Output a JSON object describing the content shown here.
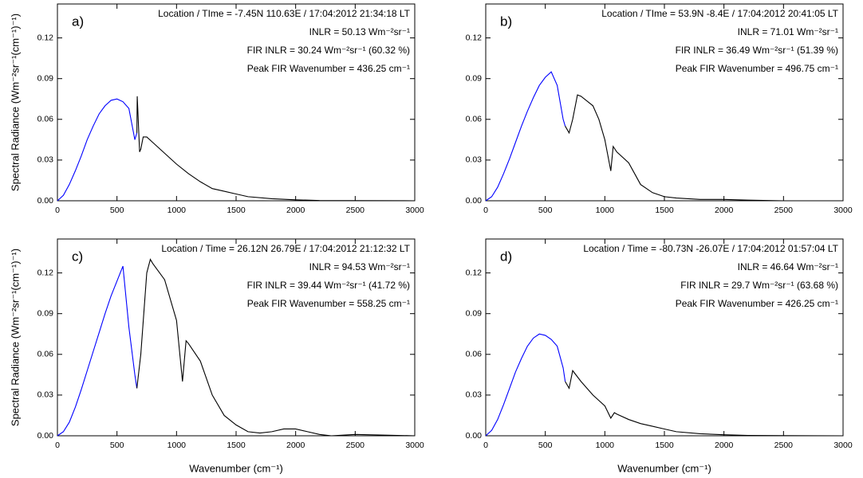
{
  "chart_data": [
    {
      "type": "line",
      "panel_label": "a)",
      "annotations": [
        "Location / TIme = -7.45N 110.63E / 17:04:2012 21:34:18 LT",
        "INLR = 50.13 Wm⁻²sr⁻¹",
        "FIR INLR = 30.24 Wm⁻²sr⁻¹ (60.32 %)",
        "Peak FIR Wavenumber = 436.25 cm⁻¹"
      ],
      "y_label": "Spectral Radiance (Wm⁻²sr⁻¹(cm⁻¹)⁻¹)",
      "xlim": [
        0,
        3000
      ],
      "xticks": [
        0,
        500,
        1000,
        1500,
        2000,
        2500,
        3000
      ],
      "ylim": [
        0,
        0.145
      ],
      "yticks": [
        {
          "value": 0,
          "label": "0.00"
        },
        0.03,
        0.06,
        0.09,
        0.12
      ],
      "series": [
        {
          "color": "#0000ff",
          "x": [
            0,
            50,
            100,
            150,
            200,
            250,
            300,
            350,
            400,
            450,
            500,
            550,
            600,
            650,
            667
          ],
          "values": [
            0,
            0.004,
            0.012,
            0.022,
            0.033,
            0.045,
            0.055,
            0.064,
            0.07,
            0.074,
            0.075,
            0.073,
            0.068,
            0.045,
            0.05
          ]
        },
        {
          "color": "#000000",
          "x": [
            667,
            670,
            690,
            700,
            720,
            750,
            800,
            900,
            1000,
            1100,
            1200,
            1300,
            1400,
            1500,
            1600,
            1800,
            2000,
            2200,
            2500,
            3000
          ],
          "values": [
            0.05,
            0.077,
            0.036,
            0.038,
            0.047,
            0.047,
            0.043,
            0.035,
            0.027,
            0.02,
            0.014,
            0.009,
            0.007,
            0.005,
            0.003,
            0.0015,
            0.0007,
            0.0002,
            0.0001,
            0
          ]
        }
      ]
    },
    {
      "type": "line",
      "panel_label": "b)",
      "annotations": [
        "Location / TIme = 53.9N -8.4E / 17:04:2012 20:41:05 LT",
        "INLR = 71.01 Wm⁻²sr⁻¹",
        "FIR INLR = 36.49 Wm⁻²sr⁻¹ (51.39 %)",
        "Peak FIR Wavenumber = 496.75 cm⁻¹"
      ],
      "xlim": [
        0,
        3000
      ],
      "xticks": [
        0,
        500,
        1000,
        1500,
        2000,
        2500,
        3000
      ],
      "ylim": [
        0,
        0.145
      ],
      "yticks": [
        {
          "value": 0,
          "label": "0.00"
        },
        0.03,
        0.06,
        0.09,
        0.12
      ],
      "series": [
        {
          "color": "#0000ff",
          "x": [
            0,
            50,
            100,
            150,
            200,
            250,
            300,
            350,
            400,
            450,
            500,
            550,
            600,
            650,
            667
          ],
          "values": [
            0,
            0.003,
            0.01,
            0.02,
            0.031,
            0.043,
            0.055,
            0.066,
            0.076,
            0.085,
            0.091,
            0.095,
            0.085,
            0.06,
            0.055
          ]
        },
        {
          "color": "#000000",
          "x": [
            667,
            700,
            730,
            770,
            800,
            900,
            950,
            1000,
            1050,
            1070,
            1100,
            1200,
            1250,
            1300,
            1400,
            1500,
            1600,
            1800,
            2000,
            2200,
            2500,
            3000
          ],
          "values": [
            0.055,
            0.05,
            0.06,
            0.078,
            0.077,
            0.07,
            0.06,
            0.045,
            0.022,
            0.04,
            0.036,
            0.028,
            0.02,
            0.012,
            0.006,
            0.003,
            0.002,
            0.001,
            0.001,
            0.0005,
            0,
            0
          ]
        }
      ]
    },
    {
      "type": "line",
      "panel_label": "c)",
      "annotations": [
        "Location / Time = 26.12N 26.79E / 17:04:2012 21:12:32 LT",
        "INLR = 94.53 Wm⁻²sr⁻¹",
        "FIR INLR = 39.44 Wm⁻²sr⁻¹ (41.72 %)",
        "Peak FIR Wavenumber = 558.25 cm⁻¹"
      ],
      "y_label": "Spectral Radiance (Wm⁻²sr⁻¹(cm⁻¹)⁻¹)",
      "x_label": "Wavenumber (cm⁻¹)",
      "xlim": [
        0,
        3000
      ],
      "xticks": [
        0,
        500,
        1000,
        1500,
        2000,
        2500,
        3000
      ],
      "ylim": [
        0,
        0.145
      ],
      "yticks": [
        {
          "value": 0,
          "label": "0.00"
        },
        0.03,
        0.06,
        0.09,
        0.12
      ],
      "series": [
        {
          "color": "#0000ff",
          "x": [
            0,
            50,
            100,
            150,
            200,
            250,
            300,
            350,
            400,
            450,
            500,
            550,
            600,
            650,
            667
          ],
          "values": [
            0,
            0.003,
            0.01,
            0.021,
            0.034,
            0.048,
            0.062,
            0.076,
            0.09,
            0.103,
            0.114,
            0.125,
            0.08,
            0.045,
            0.035
          ]
        },
        {
          "color": "#000000",
          "x": [
            667,
            700,
            750,
            780,
            800,
            900,
            1000,
            1050,
            1080,
            1100,
            1200,
            1300,
            1400,
            1500,
            1600,
            1700,
            1800,
            1900,
            2000,
            2100,
            2200,
            2300,
            2500,
            3000
          ],
          "values": [
            0.035,
            0.06,
            0.12,
            0.13,
            0.127,
            0.115,
            0.085,
            0.04,
            0.07,
            0.068,
            0.055,
            0.03,
            0.015,
            0.008,
            0.003,
            0.002,
            0.003,
            0.005,
            0.005,
            0.003,
            0.001,
            0,
            0.001,
            0
          ]
        }
      ]
    },
    {
      "type": "line",
      "panel_label": "d)",
      "annotations": [
        "Location / Time = -80.73N -26.07E / 17:04:2012 01:57:04 LT",
        "INLR = 46.64 Wm⁻²sr⁻¹",
        "FIR INLR = 29.7 Wm⁻²sr⁻¹ (63.68 %)",
        "Peak FIR Wavenumber = 426.25 cm⁻¹"
      ],
      "x_label": "Wavenumber (cm⁻¹)",
      "xlim": [
        0,
        3000
      ],
      "xticks": [
        0,
        500,
        1000,
        1500,
        2000,
        2500,
        3000
      ],
      "ylim": [
        0,
        0.145
      ],
      "yticks": [
        {
          "value": 0,
          "label": "0.00"
        },
        0.03,
        0.06,
        0.09,
        0.12
      ],
      "series": [
        {
          "color": "#0000ff",
          "x": [
            0,
            50,
            100,
            150,
            200,
            250,
            300,
            350,
            400,
            450,
            500,
            550,
            600,
            650,
            667
          ],
          "values": [
            0,
            0.004,
            0.012,
            0.023,
            0.035,
            0.047,
            0.057,
            0.066,
            0.072,
            0.075,
            0.074,
            0.071,
            0.066,
            0.05,
            0.04
          ]
        },
        {
          "color": "#000000",
          "x": [
            667,
            700,
            730,
            800,
            900,
            1000,
            1050,
            1080,
            1100,
            1200,
            1300,
            1400,
            1500,
            1600,
            1800,
            2000,
            2200,
            2500,
            3000
          ],
          "values": [
            0.04,
            0.035,
            0.048,
            0.04,
            0.03,
            0.022,
            0.013,
            0.017,
            0.016,
            0.012,
            0.009,
            0.007,
            0.005,
            0.003,
            0.0015,
            0.0008,
            0.0003,
            0.0001,
            0
          ]
        }
      ]
    }
  ]
}
